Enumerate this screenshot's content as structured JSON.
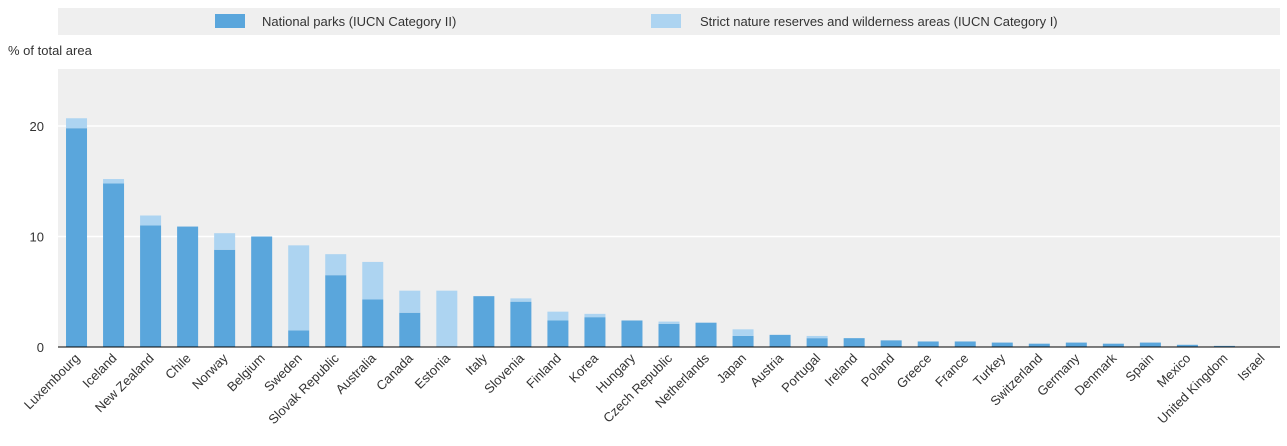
{
  "colors": {
    "series_primary": "#5aa6dc",
    "series_secondary": "#add4f1",
    "plot_background": "#efefef",
    "legend_background": "#efefef",
    "gridline": "#ffffff",
    "axis_line": "#000000"
  },
  "chart_data": {
    "type": "bar",
    "stacked": true,
    "ylabel": "% of total area",
    "ylim": [
      0,
      25
    ],
    "yticks": [
      0,
      10,
      20
    ],
    "grid": true,
    "legend_position": "top",
    "categories": [
      "Luxembourg",
      "Iceland",
      "New Zealand",
      "Chile",
      "Norway",
      "Belgium",
      "Sweden",
      "Slovak Republic",
      "Australia",
      "Canada",
      "Estonia",
      "Italy",
      "Slovenia",
      "Finland",
      "Korea",
      "Hungary",
      "Czech Republic",
      "Netherlands",
      "Japan",
      "Austria",
      "Portugal",
      "Ireland",
      "Poland",
      "Greece",
      "France",
      "Turkey",
      "Switzerland",
      "Germany",
      "Denmark",
      "Spain",
      "Mexico",
      "United Kingdom",
      "Israel"
    ],
    "series": [
      {
        "name": "National parks (IUCN Category II)",
        "color": "#5aa6dc",
        "values": [
          19.8,
          14.8,
          11.0,
          10.9,
          8.8,
          10.0,
          1.5,
          6.5,
          4.3,
          3.1,
          0.0,
          4.6,
          4.1,
          2.4,
          2.7,
          2.4,
          2.1,
          2.2,
          1.0,
          1.1,
          0.8,
          0.8,
          0.6,
          0.5,
          0.5,
          0.4,
          0.3,
          0.4,
          0.3,
          0.4,
          0.2,
          0.1,
          0.0
        ]
      },
      {
        "name": "Strict nature reserves and wilderness areas (IUCN Category I)",
        "color": "#add4f1",
        "values": [
          0.9,
          0.4,
          0.9,
          0.0,
          1.5,
          0.0,
          7.7,
          1.9,
          3.4,
          2.0,
          5.1,
          0.0,
          0.3,
          0.8,
          0.3,
          0.0,
          0.2,
          0.0,
          0.6,
          0.0,
          0.2,
          0.0,
          0.0,
          0.0,
          0.0,
          0.0,
          0.0,
          0.0,
          0.0,
          0.0,
          0.0,
          0.0,
          0.0
        ]
      }
    ]
  }
}
